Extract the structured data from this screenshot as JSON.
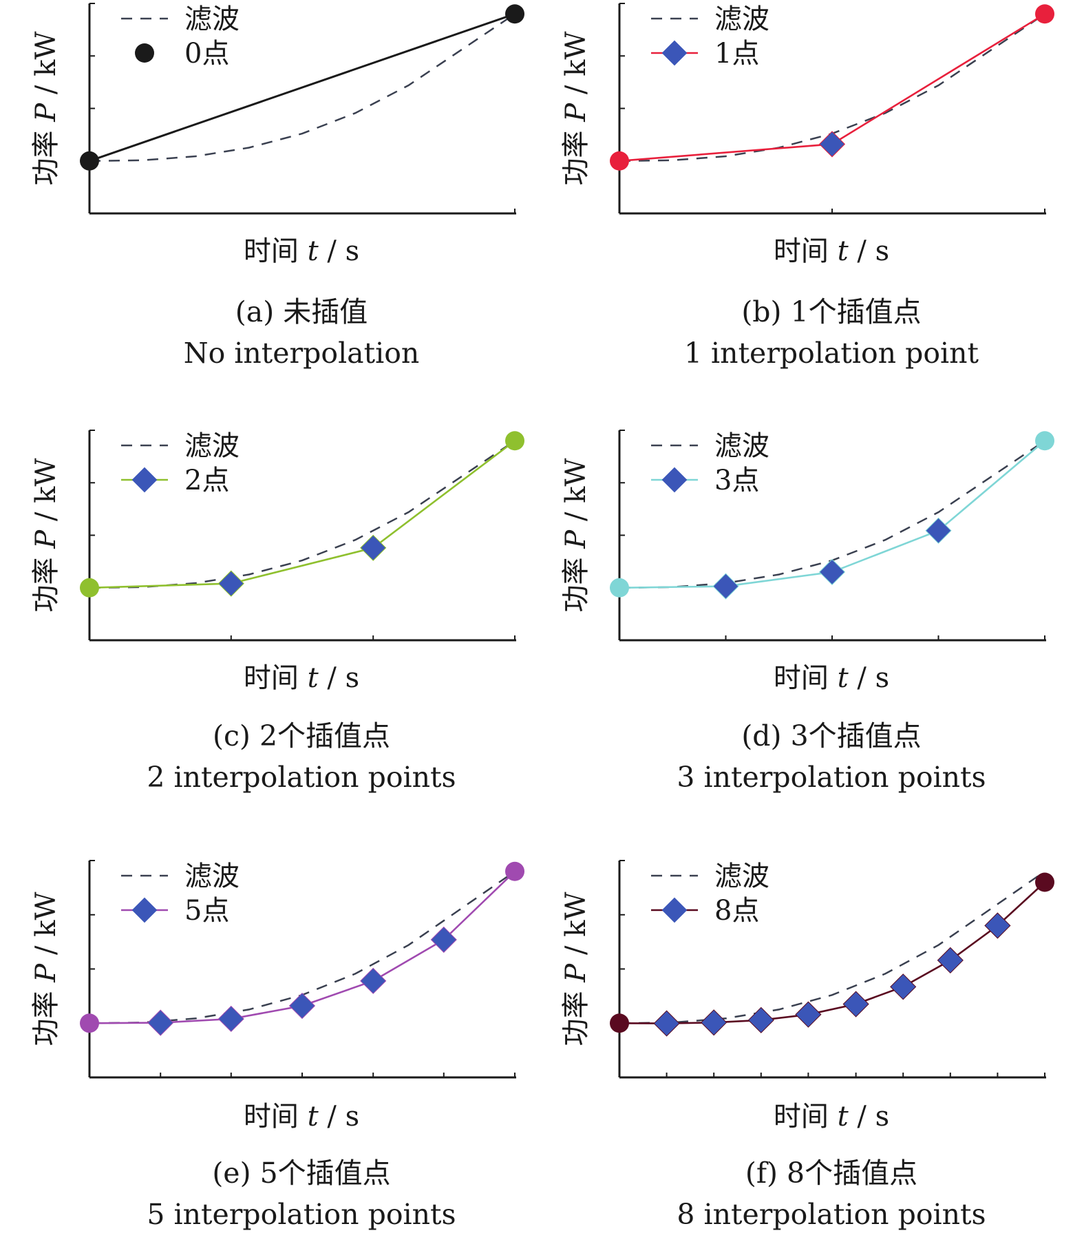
{
  "chart_data": [
    {
      "type": "line",
      "xlabel_cn": "时间",
      "xlabel_var": "t",
      "xlabel_unit": "/ s",
      "ylabel_cn": "功率",
      "ylabel_var": "P",
      "ylabel_unit": "/ kW",
      "caption_cn": "(a) 未插值",
      "caption_en": "No interpolation",
      "color": "#1a1a1a",
      "marker": "circle",
      "xlim": [
        0,
        1
      ],
      "ylim": [
        0,
        1
      ],
      "filtered": {
        "name": "滤波",
        "x": [
          0,
          0.125,
          0.25,
          0.375,
          0.5,
          0.625,
          0.75,
          0.875,
          1
        ],
        "y": [
          0.25,
          0.253,
          0.272,
          0.313,
          0.38,
          0.478,
          0.61,
          0.78,
          0.95
        ]
      },
      "series": [
        {
          "name": "0点",
          "x": [
            0,
            1
          ],
          "y": [
            0.25,
            0.95
          ]
        }
      ]
    },
    {
      "type": "line",
      "xlabel_cn": "时间",
      "xlabel_var": "t",
      "xlabel_unit": "/ s",
      "ylabel_cn": "功率",
      "ylabel_var": "P",
      "ylabel_unit": "/ kW",
      "caption_cn": "(b) 1个插值点",
      "caption_en": "1 interpolation point",
      "color": "#e8203c",
      "marker": "diamond",
      "xlim": [
        0,
        1
      ],
      "ylim": [
        0,
        1
      ],
      "filtered": {
        "name": "滤波",
        "x": [
          0,
          0.125,
          0.25,
          0.375,
          0.5,
          0.625,
          0.75,
          0.875,
          1
        ],
        "y": [
          0.25,
          0.253,
          0.272,
          0.313,
          0.38,
          0.478,
          0.61,
          0.78,
          0.95
        ]
      },
      "series": [
        {
          "name": "1点",
          "x": [
            0,
            0.5,
            1
          ],
          "y": [
            0.25,
            0.33,
            0.95
          ]
        }
      ]
    },
    {
      "type": "line",
      "xlabel_cn": "时间",
      "xlabel_var": "t",
      "xlabel_unit": "/ s",
      "ylabel_cn": "功率",
      "ylabel_var": "P",
      "ylabel_unit": "/ kW",
      "caption_cn": "(c) 2个插值点",
      "caption_en": "2 interpolation points",
      "color": "#8fc02e",
      "marker": "diamond",
      "xlim": [
        0,
        1
      ],
      "ylim": [
        0,
        1
      ],
      "filtered": {
        "name": "滤波",
        "x": [
          0,
          0.125,
          0.25,
          0.375,
          0.5,
          0.625,
          0.75,
          0.875,
          1
        ],
        "y": [
          0.25,
          0.253,
          0.272,
          0.313,
          0.38,
          0.478,
          0.61,
          0.78,
          0.95
        ]
      },
      "series": [
        {
          "name": "2点",
          "x": [
            0,
            0.333,
            0.667,
            1
          ],
          "y": [
            0.25,
            0.27,
            0.44,
            0.95
          ]
        }
      ]
    },
    {
      "type": "line",
      "xlabel_cn": "时间",
      "xlabel_var": "t",
      "xlabel_unit": "/ s",
      "ylabel_cn": "功率",
      "ylabel_var": "P",
      "ylabel_unit": "/ kW",
      "caption_cn": "(d) 3个插值点",
      "caption_en": "3 interpolation points",
      "color": "#7fd6d6",
      "marker": "diamond",
      "xlim": [
        0,
        1
      ],
      "ylim": [
        0,
        1
      ],
      "filtered": {
        "name": "滤波",
        "x": [
          0,
          0.125,
          0.25,
          0.375,
          0.5,
          0.625,
          0.75,
          0.875,
          1
        ],
        "y": [
          0.25,
          0.253,
          0.272,
          0.313,
          0.38,
          0.478,
          0.61,
          0.78,
          0.95
        ]
      },
      "series": [
        {
          "name": "3点",
          "x": [
            0,
            0.25,
            0.5,
            0.75,
            1
          ],
          "y": [
            0.25,
            0.257,
            0.325,
            0.522,
            0.95
          ]
        }
      ]
    },
    {
      "type": "line",
      "xlabel_cn": "时间",
      "xlabel_var": "t",
      "xlabel_unit": "/ s",
      "ylabel_cn": "功率",
      "ylabel_var": "P",
      "ylabel_unit": "/ kW",
      "caption_cn": "(e) 5个插值点",
      "caption_en": "5 interpolation points",
      "color": "#a04ab0",
      "marker": "diamond",
      "xlim": [
        0,
        1
      ],
      "ylim": [
        0,
        1
      ],
      "filtered": {
        "name": "滤波",
        "x": [
          0,
          0.125,
          0.25,
          0.375,
          0.5,
          0.625,
          0.75,
          0.875,
          1
        ],
        "y": [
          0.25,
          0.253,
          0.272,
          0.313,
          0.38,
          0.478,
          0.61,
          0.78,
          0.95
        ]
      },
      "series": [
        {
          "name": "5点",
          "x": [
            0,
            0.167,
            0.333,
            0.5,
            0.667,
            0.833,
            1
          ],
          "y": [
            0.25,
            0.252,
            0.27,
            0.33,
            0.445,
            0.635,
            0.95
          ]
        }
      ]
    },
    {
      "type": "line",
      "xlabel_cn": "时间",
      "xlabel_var": "t",
      "xlabel_unit": "/ s",
      "ylabel_cn": "功率",
      "ylabel_var": "P",
      "ylabel_unit": "/ kW",
      "caption_cn": "(f) 8个插值点",
      "caption_en": "8 interpolation points",
      "color": "#5a0a20",
      "marker": "diamond",
      "xlim": [
        0,
        1
      ],
      "ylim": [
        0,
        1
      ],
      "filtered": {
        "name": "滤波",
        "x": [
          0,
          0.125,
          0.25,
          0.375,
          0.5,
          0.625,
          0.75,
          0.875,
          1
        ],
        "y": [
          0.25,
          0.253,
          0.272,
          0.313,
          0.38,
          0.478,
          0.61,
          0.78,
          0.95
        ]
      },
      "series": [
        {
          "name": "8点",
          "x": [
            0,
            0.111,
            0.222,
            0.333,
            0.444,
            0.556,
            0.667,
            0.778,
            0.889,
            1
          ],
          "y": [
            0.25,
            0.249,
            0.253,
            0.264,
            0.29,
            0.338,
            0.418,
            0.54,
            0.7,
            0.9
          ]
        }
      ]
    }
  ]
}
